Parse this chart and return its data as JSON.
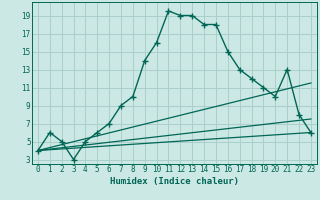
{
  "title": "",
  "xlabel": "Humidex (Indice chaleur)",
  "bg_color": "#cce8e4",
  "grid_color": "#aacfcb",
  "line_color": "#006655",
  "main_curve_x": [
    0,
    1,
    2,
    3,
    4,
    5,
    6,
    7,
    8,
    9,
    10,
    11,
    12,
    13,
    14,
    15,
    16,
    17,
    18,
    19,
    20,
    21,
    22,
    23
  ],
  "main_curve_y": [
    4,
    6,
    5,
    3,
    5,
    6,
    7,
    9,
    10,
    14,
    16,
    19.5,
    19,
    19,
    18,
    18,
    15,
    13,
    12,
    11,
    10,
    13,
    8,
    6
  ],
  "line1_x": [
    0,
    23
  ],
  "line1_y": [
    4.0,
    11.5
  ],
  "line2_x": [
    0,
    23
  ],
  "line2_y": [
    4.0,
    7.5
  ],
  "line3_x": [
    0,
    23
  ],
  "line3_y": [
    4.0,
    6.0
  ],
  "ylim": [
    2.5,
    20.5
  ],
  "xlim": [
    -0.5,
    23.5
  ],
  "yticks": [
    3,
    5,
    7,
    9,
    11,
    13,
    15,
    17,
    19
  ],
  "xticks": [
    0,
    1,
    2,
    3,
    4,
    5,
    6,
    7,
    8,
    9,
    10,
    11,
    12,
    13,
    14,
    15,
    16,
    17,
    18,
    19,
    20,
    21,
    22,
    23
  ]
}
